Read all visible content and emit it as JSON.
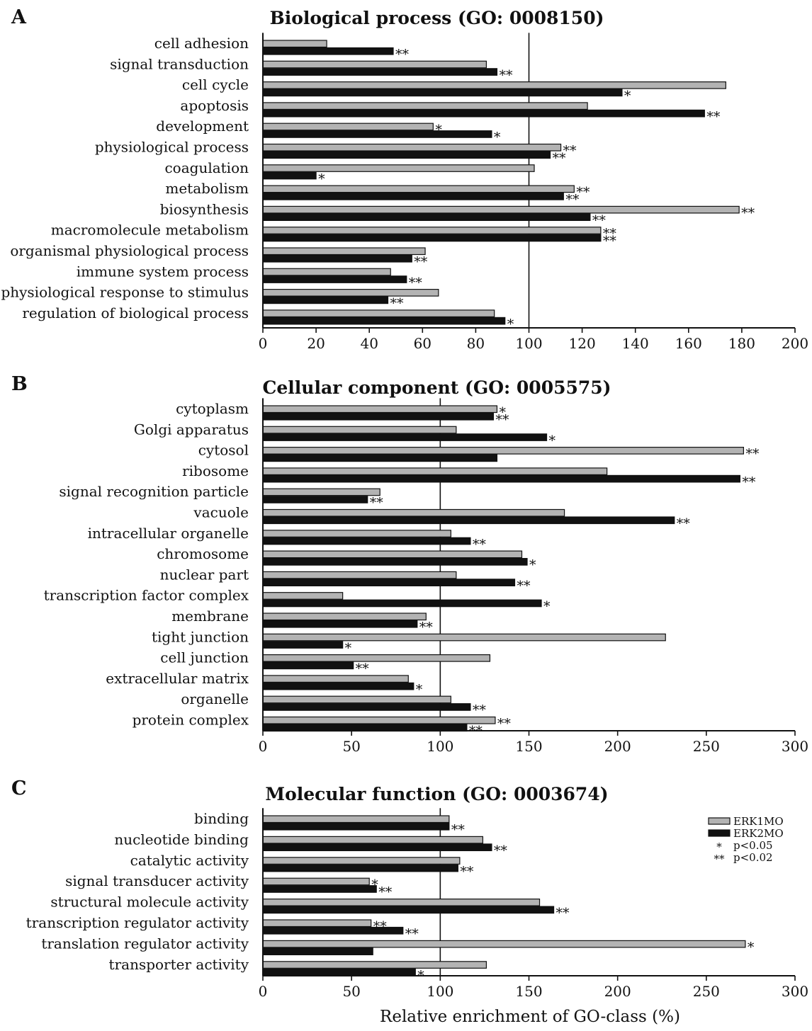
{
  "x_axis_label": "Relative enrichment of GO-class (%)",
  "legend": {
    "series": [
      "ERK1MO",
      "ERK2MO"
    ],
    "sig": [
      {
        "symbol": "*",
        "text": "p<0.05"
      },
      {
        "symbol": "**",
        "text": "p<0.02"
      }
    ],
    "position": "top-right of panel C"
  },
  "colors": {
    "ERK1MO": "#b3b3b3",
    "ERK2MO": "#111111"
  },
  "chart_data": [
    {
      "type": "bar",
      "orientation": "horizontal",
      "panel": "A",
      "title": "Biological process (GO: 0008150)",
      "xlim": [
        0,
        200
      ],
      "xticks": [
        0,
        20,
        40,
        60,
        80,
        100,
        120,
        140,
        160,
        180,
        200
      ],
      "reference_line": 100,
      "categories": [
        "cell adhesion",
        "signal transduction",
        "cell cycle",
        "apoptosis",
        "development",
        "physiological process",
        "coagulation",
        "metabolism",
        "biosynthesis",
        "macromolecule metabolism",
        "organismal physiological process",
        "immune system process",
        "physiological response to stimulus",
        "regulation of biological process"
      ],
      "series": [
        {
          "name": "ERK1MO",
          "values": [
            24,
            84,
            174,
            122,
            64,
            112,
            102,
            117,
            179,
            127,
            61,
            48,
            66,
            87
          ],
          "sig": [
            "",
            "",
            "",
            "",
            "*",
            "**",
            "",
            "**",
            "**",
            "**",
            "",
            "",
            "",
            ""
          ]
        },
        {
          "name": "ERK2MO",
          "values": [
            49,
            88,
            135,
            166,
            86,
            108,
            20,
            113,
            123,
            127,
            56,
            54,
            47,
            91
          ],
          "sig": [
            "**",
            "**",
            "*",
            "**",
            "*",
            "**",
            "*",
            "**",
            "**",
            "**",
            "**",
            "**",
            "**",
            "*"
          ]
        }
      ]
    },
    {
      "type": "bar",
      "orientation": "horizontal",
      "panel": "B",
      "title": "Cellular component (GO: 0005575)",
      "xlim": [
        0,
        300
      ],
      "xticks": [
        0,
        50,
        100,
        150,
        200,
        250,
        300
      ],
      "reference_line": 100,
      "categories": [
        "cytoplasm",
        "Golgi apparatus",
        "cytosol",
        "ribosome",
        "signal recognition particle",
        "vacuole",
        "intracellular organelle",
        "chromosome",
        "nuclear part",
        "transcription factor complex",
        "membrane",
        "tight junction",
        "cell junction",
        "extracellular matrix",
        "organelle",
        "protein complex"
      ],
      "series": [
        {
          "name": "ERK1MO",
          "values": [
            132,
            109,
            271,
            194,
            66,
            170,
            106,
            146,
            109,
            45,
            92,
            227,
            128,
            82,
            106,
            131
          ],
          "sig": [
            "*",
            "",
            "**",
            "",
            "",
            "",
            "",
            "",
            "",
            "",
            "",
            "",
            "",
            "",
            "",
            "**"
          ]
        },
        {
          "name": "ERK2MO",
          "values": [
            130,
            160,
            132,
            269,
            59,
            232,
            117,
            149,
            142,
            157,
            87,
            45,
            51,
            85,
            117,
            115
          ],
          "sig": [
            "**",
            "*",
            "",
            "**",
            "**",
            "**",
            "**",
            "*",
            "**",
            "*",
            "**",
            "*",
            "**",
            "*",
            "**",
            "**"
          ]
        }
      ]
    },
    {
      "type": "bar",
      "orientation": "horizontal",
      "panel": "C",
      "title": "Molecular function (GO: 0003674)",
      "xlim": [
        0,
        300
      ],
      "xticks": [
        0,
        50,
        100,
        150,
        200,
        250,
        300
      ],
      "reference_line": 100,
      "categories": [
        "binding",
        "nucleotide binding",
        "catalytic activity",
        "signal transducer activity",
        "structural molecule activity",
        "transcription regulator activity",
        "translation regulator activity",
        "transporter activity"
      ],
      "series": [
        {
          "name": "ERK1MO",
          "values": [
            105,
            124,
            111,
            60,
            156,
            61,
            272,
            126
          ],
          "sig": [
            "",
            "",
            "",
            "*",
            "",
            "**",
            "*",
            ""
          ]
        },
        {
          "name": "ERK2MO",
          "values": [
            105,
            129,
            110,
            64,
            164,
            79,
            62,
            86
          ],
          "sig": [
            "**",
            "**",
            "**",
            "**",
            "**",
            "**",
            "",
            "*"
          ]
        }
      ]
    }
  ]
}
